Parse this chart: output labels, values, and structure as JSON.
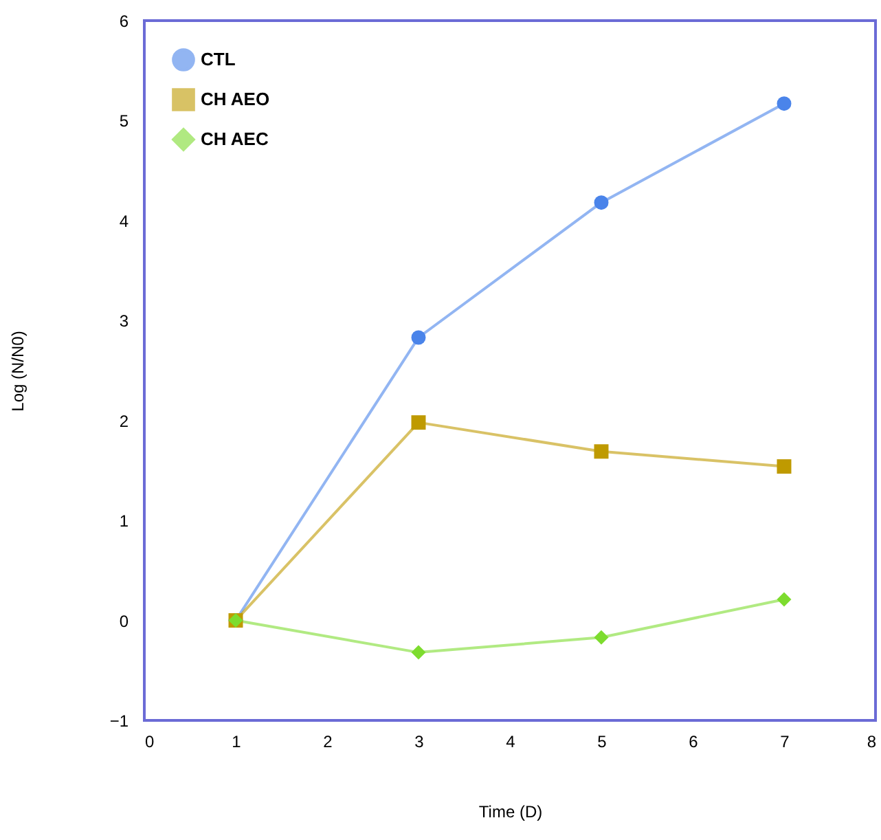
{
  "chart_data": {
    "type": "line",
    "xlabel": "Time (D)",
    "ylabel": "Log (N/N0)",
    "x": [
      1,
      3,
      5,
      7
    ],
    "series": [
      {
        "name": "CTL",
        "color": "#4a84ea",
        "marker": "circle",
        "values": [
          0,
          2.83,
          4.18,
          5.17
        ]
      },
      {
        "name": "CH AEO",
        "color": "#bf9a00",
        "marker": "square",
        "values": [
          0,
          1.98,
          1.69,
          1.54
        ]
      },
      {
        "name": "CH AEC",
        "color": "#7ddc2e",
        "marker": "diamond",
        "values": [
          0,
          -0.32,
          -0.17,
          0.21
        ]
      }
    ],
    "xlim": [
      0,
      8
    ],
    "xticks": [
      0,
      1,
      2,
      3,
      4,
      5,
      6,
      7,
      8
    ],
    "ylim": [
      -1,
      6
    ],
    "yticks": [
      -1,
      0,
      1,
      2,
      3,
      4,
      5,
      6
    ],
    "grid": false,
    "legend": "top left",
    "line_style": "solid"
  }
}
